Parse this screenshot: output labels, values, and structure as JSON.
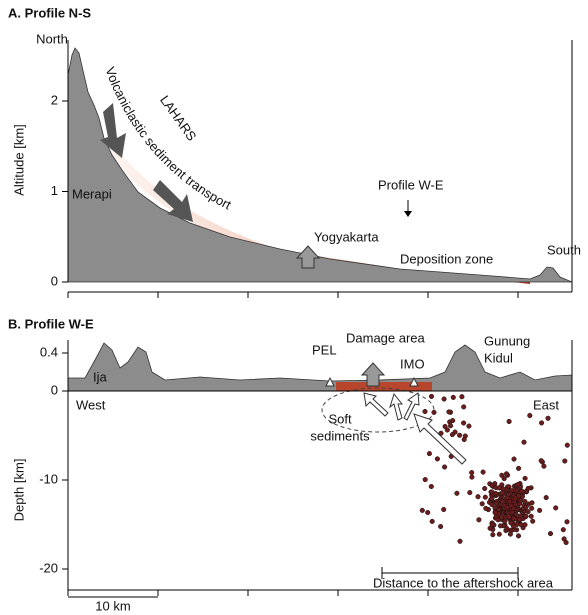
{
  "panel_a": {
    "title": "A. Profile N-S",
    "y_label": "Altitude [km]",
    "yticks": [
      0,
      1,
      2
    ],
    "labels": {
      "north": "North",
      "merapi": "Merapi",
      "transport": "Volcaniclastic sediment transport",
      "lahars": "LAHARS",
      "profile": "Profile W-E",
      "city": "Yogyakarta",
      "deposition": "Deposition zone",
      "south": "South"
    }
  },
  "panel_b": {
    "title": "B. Profile W-E",
    "y_label": "Depth [km]",
    "altitude_ticks": [
      0.4,
      0
    ],
    "depth_ticks": [
      -10,
      -20
    ],
    "labels": {
      "ija": "Ija",
      "west": "West",
      "pel": "PEL",
      "damage": "Damage area",
      "imo": "IMO",
      "gunung": [
        "Gunung",
        "Kidul"
      ],
      "east": "East",
      "soft": [
        "Soft",
        "sediments"
      ],
      "distance": "Distance to the aftershock area",
      "scale": "10 km"
    }
  }
}
